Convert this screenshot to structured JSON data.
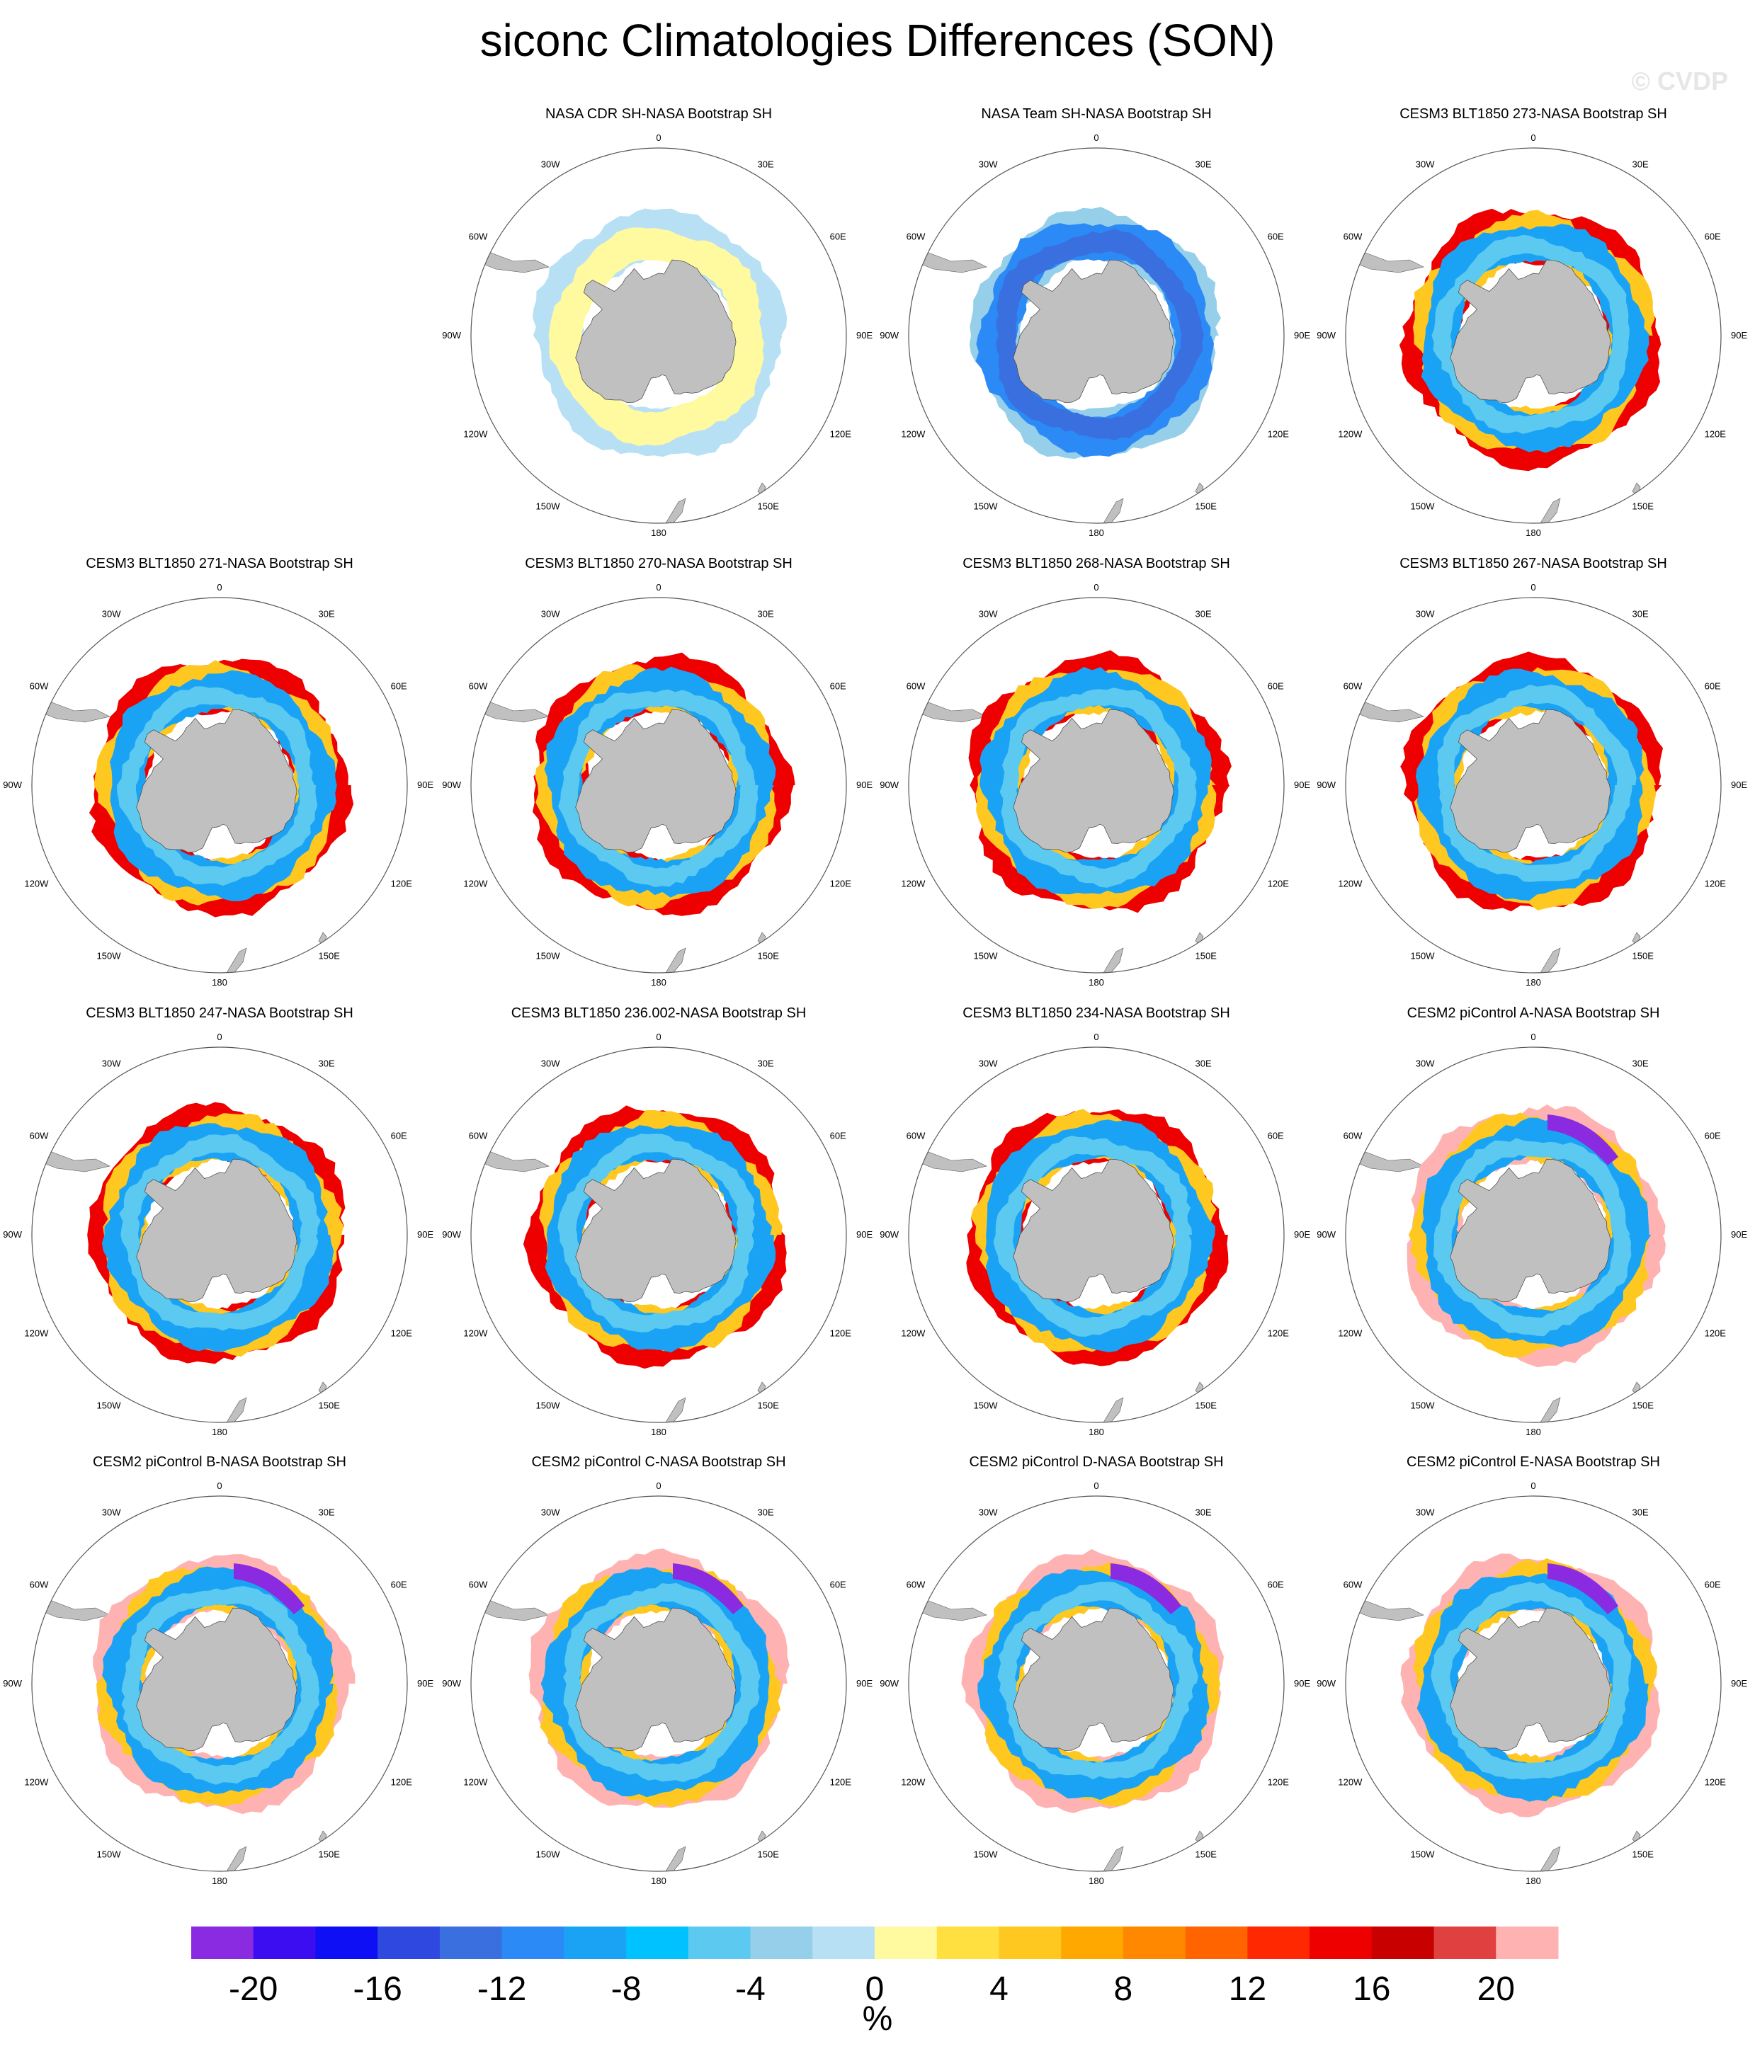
{
  "title": "siconc Climatologies Differences (SON)",
  "watermark": "© CVDP",
  "map": {
    "projection": "south-polar-stereographic",
    "longitude_labels": [
      "0",
      "30E",
      "60E",
      "90E",
      "120E",
      "150E",
      "180",
      "150W",
      "120W",
      "90W",
      "60W",
      "30W"
    ],
    "land_color": "#c0c0c0",
    "ocean_color": "#ffffff"
  },
  "panels": [
    {
      "title": "NASA CDR SH-NASA Bootstrap SH",
      "pattern": "cdr"
    },
    {
      "title": "NASA Team SH-NASA Bootstrap SH",
      "pattern": "team"
    },
    {
      "title": "CESM3 BLT1850 273-NASA Bootstrap SH",
      "pattern": "blt"
    },
    {
      "title": "CESM3 BLT1850 271-NASA Bootstrap SH",
      "pattern": "blt"
    },
    {
      "title": "CESM3 BLT1850 270-NASA Bootstrap SH",
      "pattern": "blt"
    },
    {
      "title": "CESM3 BLT1850 268-NASA Bootstrap SH",
      "pattern": "blt"
    },
    {
      "title": "CESM3 BLT1850 267-NASA Bootstrap SH",
      "pattern": "blt"
    },
    {
      "title": "CESM3 BLT1850 247-NASA Bootstrap SH",
      "pattern": "blt"
    },
    {
      "title": "CESM3 BLT1850 236.002-NASA Bootstrap SH",
      "pattern": "blt"
    },
    {
      "title": "CESM3 BLT1850 234-NASA Bootstrap SH",
      "pattern": "blt"
    },
    {
      "title": "CESM2 piControl A-NASA Bootstrap SH",
      "pattern": "cesm2"
    },
    {
      "title": "CESM2 piControl B-NASA Bootstrap SH",
      "pattern": "cesm2"
    },
    {
      "title": "CESM2 piControl C-NASA Bootstrap SH",
      "pattern": "cesm2"
    },
    {
      "title": "CESM2 piControl D-NASA Bootstrap SH",
      "pattern": "cesm2"
    },
    {
      "title": "CESM2 piControl E-NASA Bootstrap SH",
      "pattern": "cesm2"
    }
  ],
  "colorbar": {
    "units": "%",
    "colors": [
      "#8a2be2",
      "#3d0df2",
      "#0f0ff5",
      "#2e48e0",
      "#3a6fe0",
      "#2b8af5",
      "#1aa3f5",
      "#00c2ff",
      "#5ccaf0",
      "#96cfe9",
      "#b8e0f5",
      "#fffaa0",
      "#ffe040",
      "#ffc820",
      "#ffa800",
      "#ff8800",
      "#ff6400",
      "#ff2800",
      "#ee0000",
      "#c80000",
      "#e04040",
      "#ffb2b2"
    ],
    "tick_values": [
      -20,
      -16,
      -12,
      -8,
      -4,
      0,
      4,
      8,
      12,
      16,
      20
    ],
    "tick_labels": [
      "-20",
      "-16",
      "-12",
      "-8",
      "-4",
      "0",
      "4",
      "8",
      "12",
      "16",
      "20"
    ]
  }
}
